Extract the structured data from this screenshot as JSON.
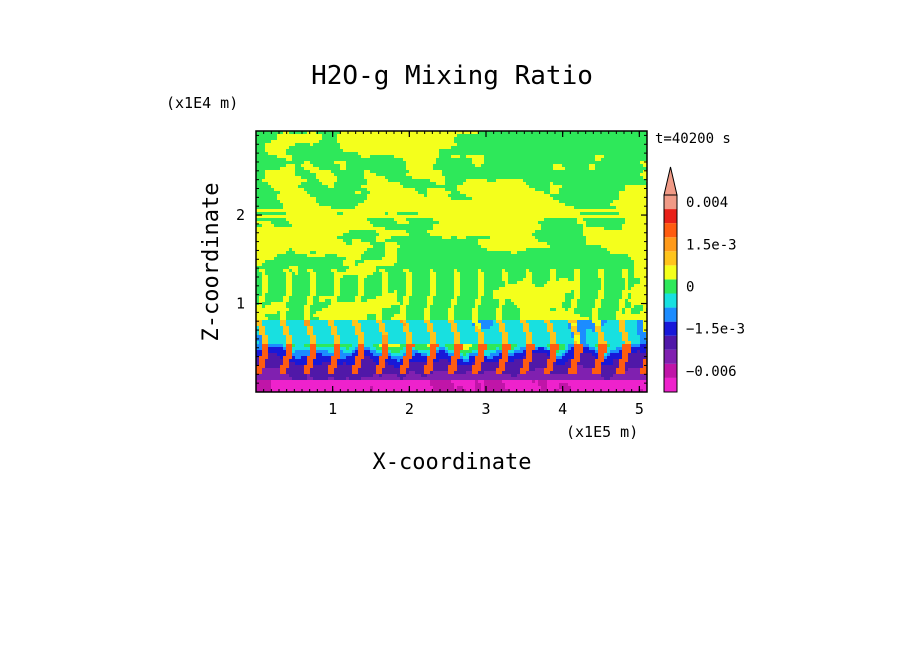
{
  "chart_data": {
    "type": "heatmap",
    "title": "H2O-g Mixing Ratio",
    "time_label": "t=40200 s",
    "xlabel": "X-coordinate",
    "ylabel": "Z-coordinate",
    "x_unit": "(x1E5 m)",
    "y_unit": "(x1E4 m)",
    "xlim": [
      0,
      5.1
    ],
    "ylim": [
      0,
      2.95
    ],
    "x_ticks": [
      1,
      2,
      3,
      4,
      5
    ],
    "x_tick_labels": [
      "1",
      "2",
      "3",
      "4",
      "5"
    ],
    "y_ticks": [
      1,
      2
    ],
    "y_tick_labels": [
      "1",
      "2"
    ],
    "colorbar": {
      "levels": [
        {
          "value": -0.0075,
          "color": "#ee22cc"
        },
        {
          "value": -0.006,
          "color": "#c015a8"
        },
        {
          "value": -0.0045,
          "color": "#8020b0"
        },
        {
          "value": -0.003,
          "color": "#5018a8"
        },
        {
          "value": -0.0015,
          "color": "#1818d8"
        },
        {
          "value": -0.00075,
          "color": "#1c8cff"
        },
        {
          "value": -0.00035,
          "color": "#18e0e0"
        },
        {
          "value": 0,
          "color": "#2ee85a"
        },
        {
          "value": 0.0005,
          "color": "#f4ff1c"
        },
        {
          "value": 0.001,
          "color": "#ffc41c"
        },
        {
          "value": 0.0015,
          "color": "#ff9a1a"
        },
        {
          "value": 0.002,
          "color": "#ff5c10"
        },
        {
          "value": 0.003,
          "color": "#e82018"
        },
        {
          "value": 0.004,
          "color": "#f09a86"
        }
      ],
      "tick_labels": [
        "0.004",
        "1.5e-3",
        "0",
        "−1.5e-3",
        "−0.006"
      ],
      "tick_values": [
        0.004,
        0.0015,
        0,
        -0.0015,
        -0.006
      ]
    },
    "field_description_regions": [
      {
        "z_range": [
          0,
          0.55
        ],
        "dominant": "negative (blue/purple) with orange-red plumes"
      },
      {
        "z_range": [
          0.55,
          0.8
        ],
        "dominant": "cyan"
      },
      {
        "z_range": [
          0.8,
          2.95
        ],
        "dominant": "green and yellow"
      }
    ]
  }
}
